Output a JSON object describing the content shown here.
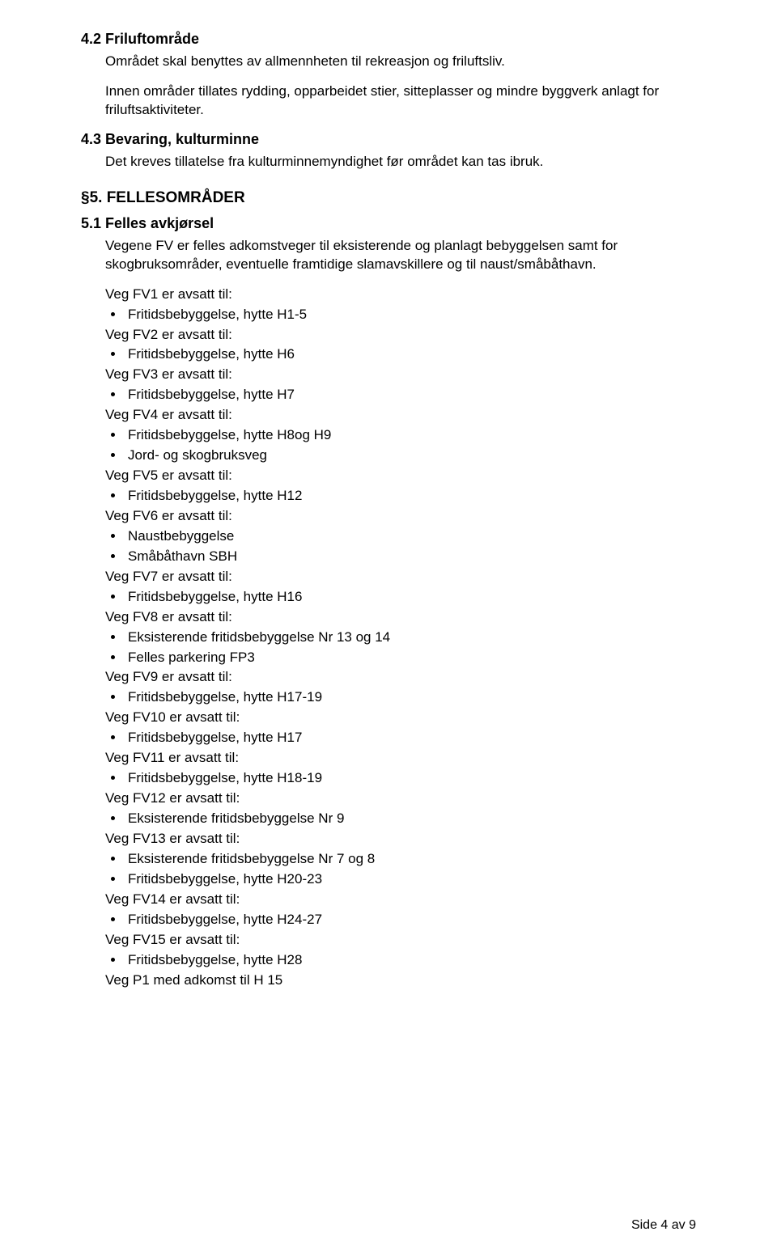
{
  "s4_2": {
    "heading": "4.2 Friluftområde",
    "p1": "Området skal benyttes av allmennheten til rekreasjon og friluftsliv.",
    "p2": "Innen områder tillates rydding, opparbeidet stier, sitteplasser og mindre byggverk anlagt for friluftsaktiviteter."
  },
  "s4_3": {
    "heading": "4.3 Bevaring, kulturminne",
    "p1": "Det kreves tillatelse fra kulturminnemyndighet før området kan tas ibruk."
  },
  "s5": {
    "heading": "§5.  FELLESOMRÅDER"
  },
  "s5_1": {
    "heading": "5.1 Felles avkjørsel",
    "intro": "Vegene FV er felles adkomstveger til eksisterende og planlagt bebyggelsen samt for skogbruksområder, eventuelle framtidige slamavskillere og til naust/småbåthavn.",
    "groups": [
      {
        "title": "Veg FV1 er avsatt til:",
        "items": [
          "Fritidsbebyggelse, hytte H1-5"
        ]
      },
      {
        "title": "Veg FV2 er avsatt til:",
        "items": [
          "Fritidsbebyggelse, hytte H6"
        ]
      },
      {
        "title": "Veg FV3 er avsatt til:",
        "items": [
          "Fritidsbebyggelse, hytte H7"
        ]
      },
      {
        "title": "Veg FV4 er avsatt til:",
        "items": [
          "Fritidsbebyggelse, hytte H8og H9",
          "Jord- og skogbruksveg"
        ]
      },
      {
        "title": "Veg FV5 er avsatt til:",
        "items": [
          "Fritidsbebyggelse, hytte H12"
        ]
      },
      {
        "title": "Veg FV6 er avsatt til:",
        "items": [
          "Naustbebyggelse",
          "Småbåthavn SBH"
        ]
      },
      {
        "title": "Veg FV7 er avsatt til:",
        "items": [
          "Fritidsbebyggelse, hytte H16"
        ]
      },
      {
        "title": "Veg FV8 er avsatt til:",
        "items": [
          "Eksisterende fritidsbebyggelse Nr 13 og 14",
          "Felles parkering FP3"
        ]
      },
      {
        "title": "Veg FV9 er avsatt til:",
        "items": [
          "Fritidsbebyggelse, hytte H17-19"
        ]
      },
      {
        "title": "Veg FV10 er avsatt til:",
        "items": [
          "Fritidsbebyggelse, hytte H17"
        ]
      },
      {
        "title": "Veg FV11 er avsatt til:",
        "items": [
          "Fritidsbebyggelse, hytte H18-19"
        ]
      },
      {
        "title": "Veg FV12 er avsatt til:",
        "items": [
          "Eksisterende fritidsbebyggelse Nr 9"
        ]
      },
      {
        "title": "Veg FV13 er avsatt til:",
        "items": [
          "Eksisterende fritidsbebyggelse Nr 7 og 8",
          "Fritidsbebyggelse, hytte H20-23"
        ]
      },
      {
        "title": "Veg FV14 er avsatt til:",
        "items": [
          "Fritidsbebyggelse, hytte H24-27"
        ]
      },
      {
        "title": "Veg FV15 er avsatt til:",
        "items": [
          "Fritidsbebyggelse, hytte H28"
        ]
      }
    ],
    "trailing": "Veg P1 med adkomst til H 15"
  },
  "footer": "Side 4 av 9"
}
